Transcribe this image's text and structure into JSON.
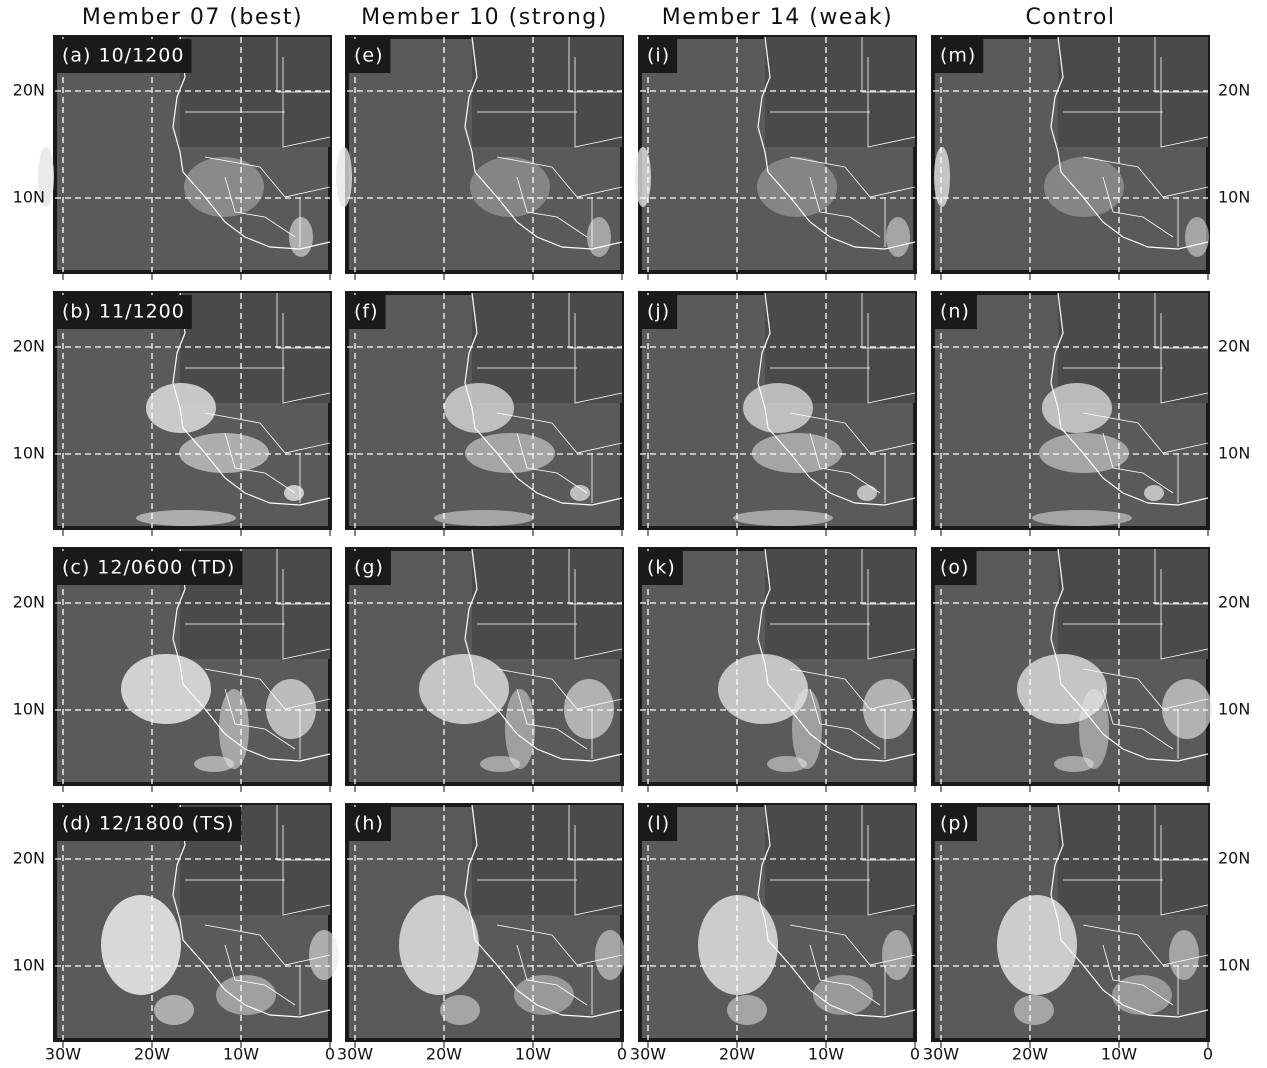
{
  "columns": [
    "Member 07 (best)",
    "Member 10 (strong)",
    "Member 14 (weak)",
    "Control"
  ],
  "panels": [
    [
      "(a) 10/1200",
      "(e)",
      "(i)",
      "(m)"
    ],
    [
      "(b) 11/1200",
      "(f)",
      "(j)",
      "(n)"
    ],
    [
      "(c) 12/0600 (TD)",
      "(g)",
      "(k)",
      "(o)"
    ],
    [
      "(d) 12/1800 (TS)",
      "(h)",
      "(l)",
      "(p)"
    ]
  ],
  "lat_labels": [
    "20N",
    "10N"
  ],
  "lon_labels": [
    "30W",
    "20W",
    "10W",
    "0"
  ]
}
